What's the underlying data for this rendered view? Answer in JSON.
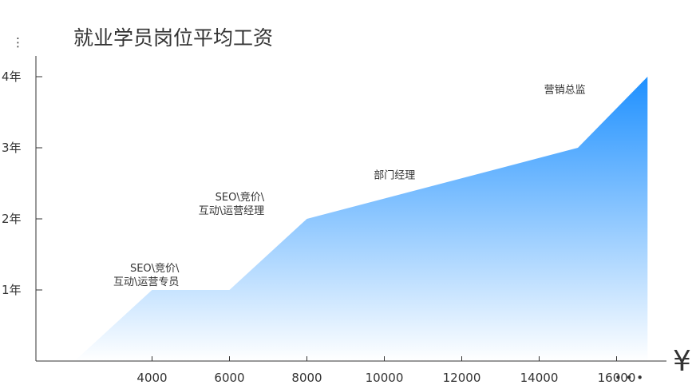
{
  "title": "就业学员岗位平均工资",
  "chart_data": {
    "type": "area",
    "title": "就业学员岗位平均工资",
    "xlabel": "",
    "ylabel": "",
    "x_axis_symbol": "¥",
    "x_continuation": "• • •",
    "y_continuation": "⋮",
    "x": [
      2000,
      4000,
      6000,
      8000,
      15000,
      16800
    ],
    "y": [
      0,
      1,
      1,
      2,
      3,
      4
    ],
    "xlim": [
      1000,
      17500
    ],
    "ylim": [
      0,
      4.8
    ],
    "x_ticks": [
      4000,
      6000,
      8000,
      10000,
      12000,
      14000,
      16000
    ],
    "y_ticks": [
      {
        "value": 1,
        "label": "1年"
      },
      {
        "value": 2,
        "label": "2年"
      },
      {
        "value": 3,
        "label": "3年"
      },
      {
        "value": 4,
        "label": "4年"
      }
    ],
    "annotations": [
      {
        "lines": [
          "SEO\\竞价\\",
          "互动\\运营专员"
        ],
        "x": 4700,
        "y": 1
      },
      {
        "lines": [
          "SEO\\竞价\\",
          "互动\\运营经理"
        ],
        "x": 6900,
        "y": 2
      },
      {
        "lines": [
          "部门经理"
        ],
        "x": 10800,
        "y": 2.5
      },
      {
        "lines": [
          "营销总监"
        ],
        "x": 15200,
        "y": 3.7
      }
    ],
    "colors": {
      "fill_top": "#1e90ff",
      "fill_bottom": "#ffffff",
      "axis": "#333333",
      "text": "#333333"
    },
    "grid": false,
    "legend": "none"
  }
}
